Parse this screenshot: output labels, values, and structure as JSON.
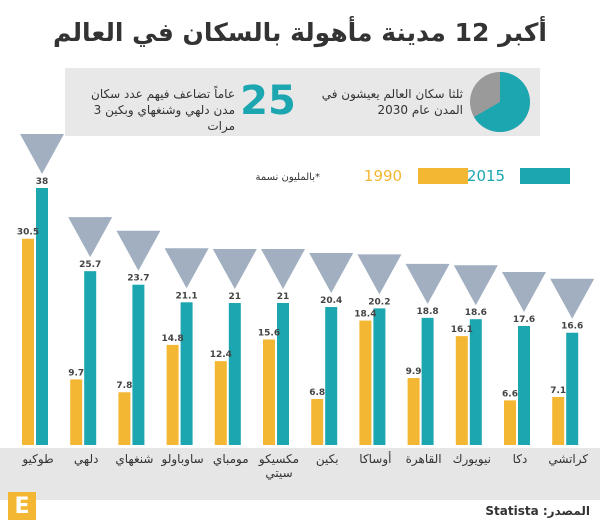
{
  "chart_data": {
    "type": "bar",
    "title": "أكبر 12 مدينة مأهولة بالسكان في العالم",
    "info_1": "ثلثا سكان العالم يعيشون في المدن عام 2030",
    "info_2_number": 25,
    "info_2": "عاماً تضاعف فيهم عدد سكان مدن دلهي وشنغهاي وبكين 3 مرات",
    "unit_note": "*بالمليون نسمة",
    "categories": [
      "طوكيو",
      "دلهي",
      "شنغهاي",
      "ساوباولو",
      "مومباي",
      "مكسيكو سيتي",
      "بكين",
      "أوساكا",
      "القاهرة",
      "نيويورك",
      "دكا",
      "كراتشي"
    ],
    "series": [
      {
        "name": "2015",
        "color": "#1ba6b0",
        "values": [
          38,
          25.7,
          23.7,
          21.1,
          21,
          21,
          20.4,
          20.2,
          18.8,
          18.6,
          17.6,
          16.6
        ]
      },
      {
        "name": "1990",
        "color": "#f4b733",
        "values": [
          30.5,
          9.7,
          7.8,
          14.8,
          12.4,
          15.6,
          6.8,
          18.4,
          9.9,
          16.1,
          6.6,
          7.1
        ]
      }
    ],
    "source": "المصدر: Statista",
    "logo": "E"
  }
}
